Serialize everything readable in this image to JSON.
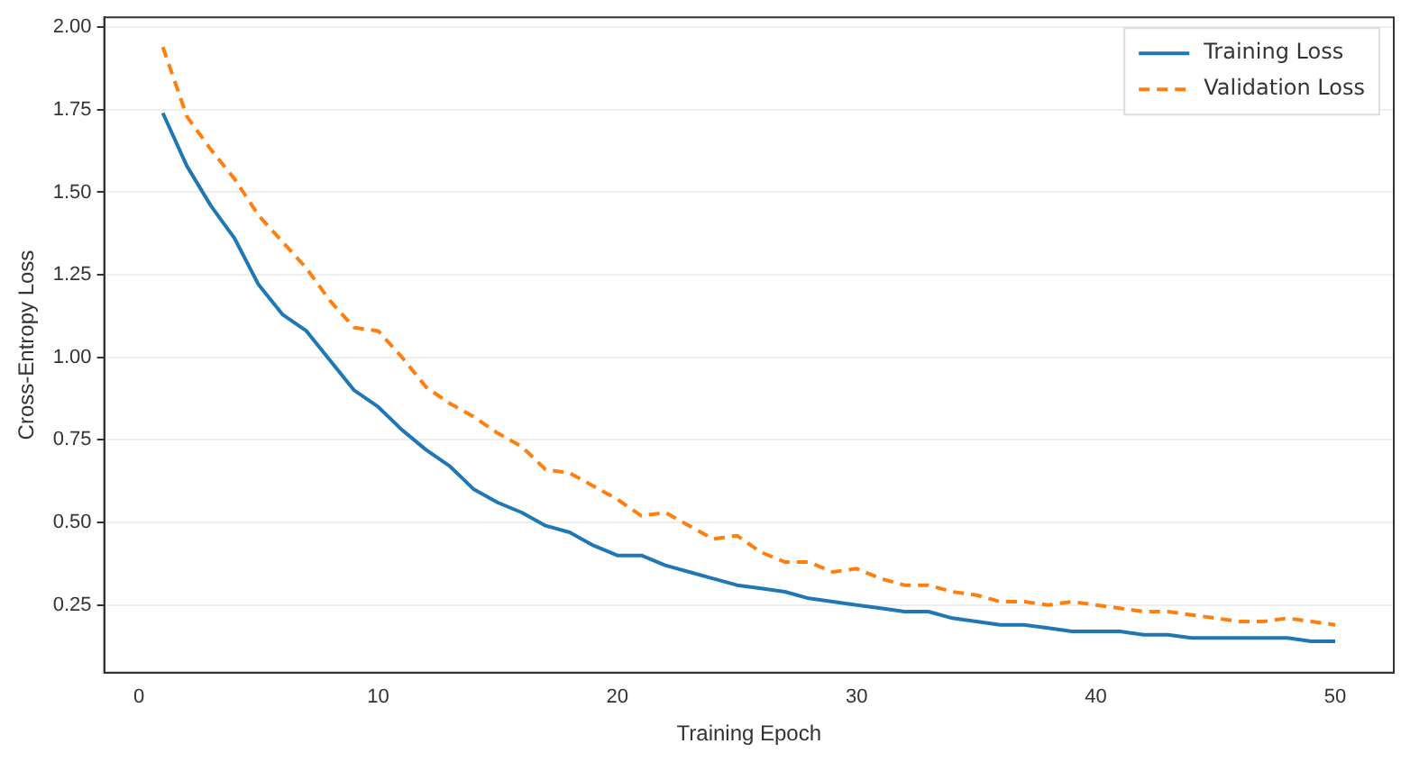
{
  "chart_data": {
    "type": "line",
    "xlabel": "Training Epoch",
    "ylabel": "Cross-Entropy Loss",
    "x": [
      1,
      2,
      3,
      4,
      5,
      6,
      7,
      8,
      9,
      10,
      11,
      12,
      13,
      14,
      15,
      16,
      17,
      18,
      19,
      20,
      21,
      22,
      23,
      24,
      25,
      26,
      27,
      28,
      29,
      30,
      31,
      32,
      33,
      34,
      35,
      36,
      37,
      38,
      39,
      40,
      41,
      42,
      43,
      44,
      45,
      46,
      47,
      48,
      49,
      50
    ],
    "series": [
      {
        "name": "Training Loss",
        "color": "#1f77b4",
        "line_style": "solid",
        "values": [
          1.74,
          1.58,
          1.46,
          1.36,
          1.22,
          1.13,
          1.08,
          0.99,
          0.9,
          0.85,
          0.78,
          0.72,
          0.67,
          0.6,
          0.56,
          0.53,
          0.49,
          0.47,
          0.43,
          0.4,
          0.4,
          0.37,
          0.35,
          0.33,
          0.31,
          0.3,
          0.29,
          0.27,
          0.26,
          0.25,
          0.24,
          0.23,
          0.23,
          0.21,
          0.2,
          0.19,
          0.19,
          0.18,
          0.17,
          0.17,
          0.17,
          0.16,
          0.16,
          0.15,
          0.15,
          0.15,
          0.15,
          0.15,
          0.14,
          0.14
        ]
      },
      {
        "name": "Validation Loss",
        "color": "#ff7f0e",
        "line_style": "dashed",
        "values": [
          1.94,
          1.73,
          1.63,
          1.54,
          1.43,
          1.35,
          1.27,
          1.17,
          1.09,
          1.08,
          1.0,
          0.91,
          0.86,
          0.82,
          0.77,
          0.73,
          0.66,
          0.65,
          0.61,
          0.57,
          0.52,
          0.53,
          0.49,
          0.45,
          0.46,
          0.41,
          0.38,
          0.38,
          0.35,
          0.36,
          0.33,
          0.31,
          0.31,
          0.29,
          0.28,
          0.26,
          0.26,
          0.25,
          0.26,
          0.25,
          0.24,
          0.23,
          0.23,
          0.22,
          0.21,
          0.2,
          0.2,
          0.21,
          0.2,
          0.19
        ]
      }
    ],
    "xlim": [
      -1.45,
      52.45
    ],
    "xticks": [
      0,
      10,
      20,
      30,
      40,
      50
    ],
    "ylim": [
      0.045,
      2.03
    ],
    "yticks": [
      {
        "value": 0.25,
        "label": "0.25"
      },
      {
        "value": 0.5,
        "label": "0.50"
      },
      {
        "value": 0.75,
        "label": "0.75"
      },
      {
        "value": 1,
        "label": "1.00"
      },
      {
        "value": 1.25,
        "label": "1.25"
      },
      {
        "value": 1.5,
        "label": "1.50"
      },
      {
        "value": 1.75,
        "label": "1.75"
      },
      {
        "value": 2,
        "label": "2.00"
      }
    ],
    "grid": "y",
    "legend": "top right",
    "marker": "none"
  }
}
